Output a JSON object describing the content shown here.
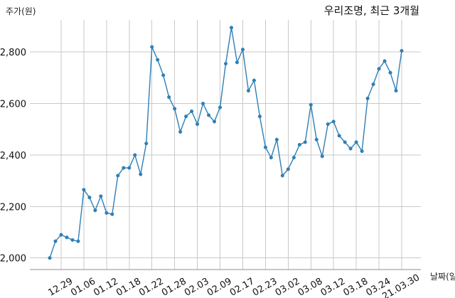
{
  "chart_data": {
    "type": "line",
    "title": "우리조명, 최근 3개월",
    "xlabel": "날짜(일)",
    "ylabel": "주가(원)",
    "x_tick_labels": [
      "12.29",
      "01.06",
      "01.12",
      "01.18",
      "01.22",
      "01.28",
      "02.03",
      "02.09",
      "02.17",
      "02.23",
      "03.02",
      "03.08",
      "03.12",
      "03.18",
      "03.24",
      "21.03.30"
    ],
    "y_tick_labels": [
      "2,000",
      "2,200",
      "2,400",
      "2,600",
      "2,800"
    ],
    "ylim": [
      1955,
      2925
    ],
    "grid": true,
    "legend": "none",
    "colors": {
      "line": "#2f7fb6",
      "point": "#2f7fb6",
      "grid": "#c9c9c9",
      "axis": "#8f8f8f"
    },
    "series": [
      {
        "values": [
          2000,
          2065,
          2090,
          2080,
          2070,
          2065,
          2265,
          2235,
          2185,
          2240,
          2175,
          2170,
          2320,
          2350,
          2350,
          2400,
          2325,
          2445,
          2820,
          2770,
          2710,
          2625,
          2580,
          2490,
          2550,
          2570,
          2520,
          2600,
          2555,
          2530,
          2585,
          2755,
          2895,
          2760,
          2810,
          2650,
          2690,
          2550,
          2430,
          2390,
          2460,
          2320,
          2345,
          2390,
          2440,
          2450,
          2595,
          2460,
          2395,
          2520,
          2530,
          2475,
          2450,
          2425,
          2450,
          2415,
          2620,
          2675,
          2735,
          2765,
          2720,
          2650,
          2805
        ]
      }
    ]
  }
}
